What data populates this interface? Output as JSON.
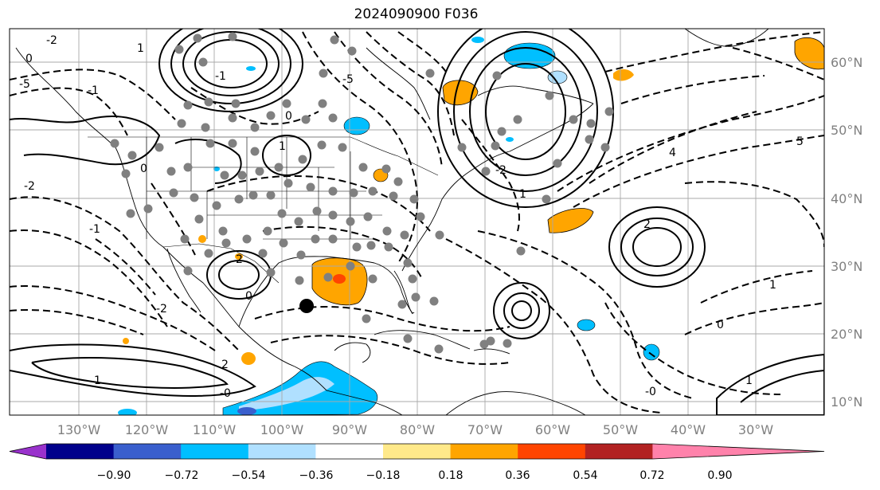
{
  "title": "2024090900 F036",
  "lat_labels": [
    "60°N",
    "50°N",
    "40°N",
    "30°N",
    "20°N",
    "10°N"
  ],
  "lon_labels": [
    "130°W",
    "120°W",
    "110°W",
    "100°W",
    "90°W",
    "80°W",
    "70°W",
    "60°W",
    "50°W",
    "40°W",
    "30°W"
  ],
  "colorbar": {
    "colors": [
      "#9932cc",
      "#00008b",
      "#3a5fcd",
      "#00bfff",
      "#b0e0ff",
      "#ffffff",
      "#ffe98a",
      "#ffa500",
      "#ff4500",
      "#b22222",
      "#ff82ab"
    ],
    "tick_labels": [
      "−0.90",
      "−0.72",
      "−0.54",
      "−0.36",
      "−0.18",
      "0.18",
      "0.36",
      "0.54",
      "0.72",
      "0.90"
    ]
  },
  "contour_labels": [
    "-2",
    "1",
    "0",
    "-5",
    "-1",
    "-5",
    "1",
    "0",
    "-1",
    "0",
    "-2",
    "2",
    "4",
    "5",
    "-2",
    "-1",
    "0",
    "-0",
    "1",
    "2",
    "-2",
    "1",
    "-0",
    "0",
    "2",
    "1",
    "1"
  ],
  "icons": {
    "station-marker": "gray-dot",
    "highlight-marker": "black-dot"
  }
}
